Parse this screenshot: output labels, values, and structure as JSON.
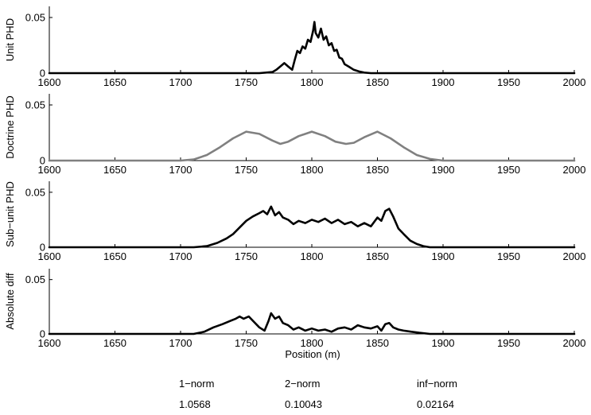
{
  "chart_data": [
    {
      "type": "line",
      "ylabel": "Unit PHD",
      "xlim": [
        1600,
        2000
      ],
      "ylim": [
        0,
        0.06
      ],
      "xticks": [
        1600,
        1650,
        1700,
        1750,
        1800,
        1850,
        1900,
        1950,
        2000
      ],
      "xtick_labels": [
        "1600",
        "1650",
        "1700",
        "1750",
        "1800",
        "1850",
        "1900",
        "1950",
        "2000"
      ],
      "yticks": [
        0,
        0.05
      ],
      "ytick_labels": [
        "0",
        "0.05"
      ],
      "series": [
        {
          "color": "#000000",
          "x": [
            1600,
            1760,
            1765,
            1770,
            1773,
            1776,
            1779,
            1782,
            1785,
            1787,
            1789,
            1791,
            1793,
            1795,
            1797,
            1799,
            1801,
            1802,
            1803,
            1805,
            1807,
            1809,
            1811,
            1813,
            1815,
            1817,
            1819,
            1821,
            1823,
            1825,
            1828,
            1832,
            1836,
            1840,
            1845,
            2000
          ],
          "y": [
            0,
            0,
            0.0005,
            0.001,
            0.003,
            0.006,
            0.009,
            0.006,
            0.003,
            0.012,
            0.02,
            0.018,
            0.024,
            0.022,
            0.03,
            0.028,
            0.038,
            0.046,
            0.036,
            0.032,
            0.04,
            0.03,
            0.033,
            0.025,
            0.027,
            0.02,
            0.021,
            0.014,
            0.013,
            0.008,
            0.006,
            0.003,
            0.0015,
            0.0005,
            0,
            0
          ]
        }
      ]
    },
    {
      "type": "line",
      "ylabel": "Doctrine PHD",
      "xlim": [
        1600,
        2000
      ],
      "ylim": [
        0,
        0.06
      ],
      "xticks": [
        1600,
        1650,
        1700,
        1750,
        1800,
        1850,
        1900,
        1950,
        2000
      ],
      "xtick_labels": [
        "1600",
        "1650",
        "1700",
        "1750",
        "1800",
        "1850",
        "1900",
        "1950",
        "2000"
      ],
      "yticks": [
        0,
        0.05
      ],
      "ytick_labels": [
        "0",
        "0.05"
      ],
      "series": [
        {
          "color": "#808080",
          "x": [
            1600,
            1700,
            1710,
            1720,
            1730,
            1740,
            1750,
            1760,
            1770,
            1776,
            1782,
            1790,
            1800,
            1810,
            1818,
            1826,
            1832,
            1840,
            1850,
            1860,
            1870,
            1880,
            1890,
            1900,
            2000
          ],
          "y": [
            0,
            0,
            0.001,
            0.005,
            0.012,
            0.02,
            0.026,
            0.024,
            0.018,
            0.015,
            0.017,
            0.022,
            0.026,
            0.022,
            0.017,
            0.015,
            0.016,
            0.021,
            0.026,
            0.02,
            0.012,
            0.005,
            0.0015,
            0,
            0
          ]
        }
      ]
    },
    {
      "type": "line",
      "ylabel": "Sub−unit PHD",
      "xlim": [
        1600,
        2000
      ],
      "ylim": [
        0,
        0.06
      ],
      "xticks": [
        1600,
        1650,
        1700,
        1750,
        1800,
        1850,
        1900,
        1950,
        2000
      ],
      "xtick_labels": [
        "1600",
        "1650",
        "1700",
        "1750",
        "1800",
        "1850",
        "1900",
        "1950",
        "2000"
      ],
      "yticks": [
        0,
        0.05
      ],
      "ytick_labels": [
        "0",
        "0.05"
      ],
      "series": [
        {
          "color": "#000000",
          "x": [
            1600,
            1710,
            1720,
            1728,
            1735,
            1740,
            1745,
            1750,
            1755,
            1760,
            1763,
            1766,
            1769,
            1772,
            1775,
            1778,
            1782,
            1786,
            1790,
            1795,
            1800,
            1805,
            1810,
            1815,
            1820,
            1825,
            1830,
            1835,
            1840,
            1845,
            1850,
            1853,
            1856,
            1859,
            1862,
            1866,
            1870,
            1875,
            1880,
            1885,
            1890,
            2000
          ],
          "y": [
            0,
            0,
            0.001,
            0.004,
            0.008,
            0.012,
            0.018,
            0.024,
            0.028,
            0.031,
            0.033,
            0.03,
            0.037,
            0.029,
            0.032,
            0.027,
            0.025,
            0.021,
            0.024,
            0.022,
            0.025,
            0.023,
            0.026,
            0.022,
            0.025,
            0.021,
            0.023,
            0.019,
            0.022,
            0.019,
            0.027,
            0.024,
            0.033,
            0.035,
            0.028,
            0.017,
            0.012,
            0.006,
            0.003,
            0.001,
            0,
            0
          ]
        }
      ]
    },
    {
      "type": "line",
      "ylabel": "Absolute diff",
      "xlabel": "Position (m)",
      "xlim": [
        1600,
        2000
      ],
      "ylim": [
        0,
        0.06
      ],
      "xticks": [
        1600,
        1650,
        1700,
        1750,
        1800,
        1850,
        1900,
        1950,
        2000
      ],
      "xtick_labels": [
        "1600",
        "1650",
        "1700",
        "1750",
        "1800",
        "1850",
        "1900",
        "1950",
        "2000"
      ],
      "yticks": [
        0,
        0.05
      ],
      "ytick_labels": [
        "0",
        "0.05"
      ],
      "series": [
        {
          "color": "#000000",
          "x": [
            1600,
            1710,
            1718,
            1725,
            1732,
            1738,
            1742,
            1745,
            1748,
            1752,
            1756,
            1760,
            1764,
            1767,
            1769,
            1772,
            1775,
            1778,
            1782,
            1786,
            1790,
            1795,
            1800,
            1805,
            1810,
            1815,
            1820,
            1825,
            1830,
            1835,
            1840,
            1845,
            1850,
            1853,
            1856,
            1859,
            1862,
            1866,
            1870,
            1876,
            1882,
            1890,
            2000
          ],
          "y": [
            0,
            0,
            0.002,
            0.006,
            0.009,
            0.012,
            0.014,
            0.016,
            0.014,
            0.016,
            0.011,
            0.006,
            0.003,
            0.012,
            0.019,
            0.014,
            0.016,
            0.01,
            0.008,
            0.004,
            0.006,
            0.003,
            0.005,
            0.003,
            0.004,
            0.002,
            0.005,
            0.006,
            0.004,
            0.008,
            0.006,
            0.005,
            0.007,
            0.003,
            0.009,
            0.01,
            0.006,
            0.004,
            0.003,
            0.002,
            0.001,
            0,
            0
          ]
        }
      ]
    }
  ],
  "norms": [
    {
      "label": "1−norm",
      "value": "1.0568"
    },
    {
      "label": "2−norm",
      "value": "0.10043"
    },
    {
      "label": "inf−norm",
      "value": "0.02164"
    }
  ]
}
